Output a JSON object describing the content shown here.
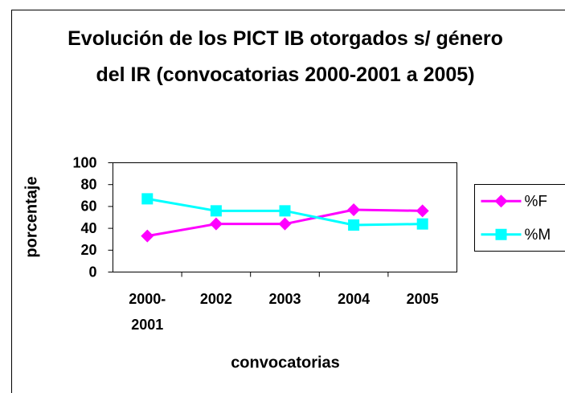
{
  "chart_data": {
    "type": "line",
    "title": "Evolución de los PICT IB otorgados s/ género del IR (convocatorias 2000-2001 a 2005)",
    "xlabel": "convocatorias",
    "ylabel": "porcentaje",
    "categories": [
      "2000-2001",
      "2002",
      "2003",
      "2004",
      "2005"
    ],
    "series": [
      {
        "name": "%F",
        "color": "#ff00ff",
        "marker": "diamond",
        "values": [
          33,
          44,
          44,
          57,
          56
        ]
      },
      {
        "name": "%M",
        "color": "#00ffff",
        "marker": "square",
        "values": [
          67,
          56,
          56,
          43,
          44
        ]
      }
    ],
    "ylim": [
      0,
      100
    ],
    "yticks": [
      0,
      20,
      40,
      60,
      80,
      100
    ],
    "grid": false,
    "legend": "right"
  }
}
